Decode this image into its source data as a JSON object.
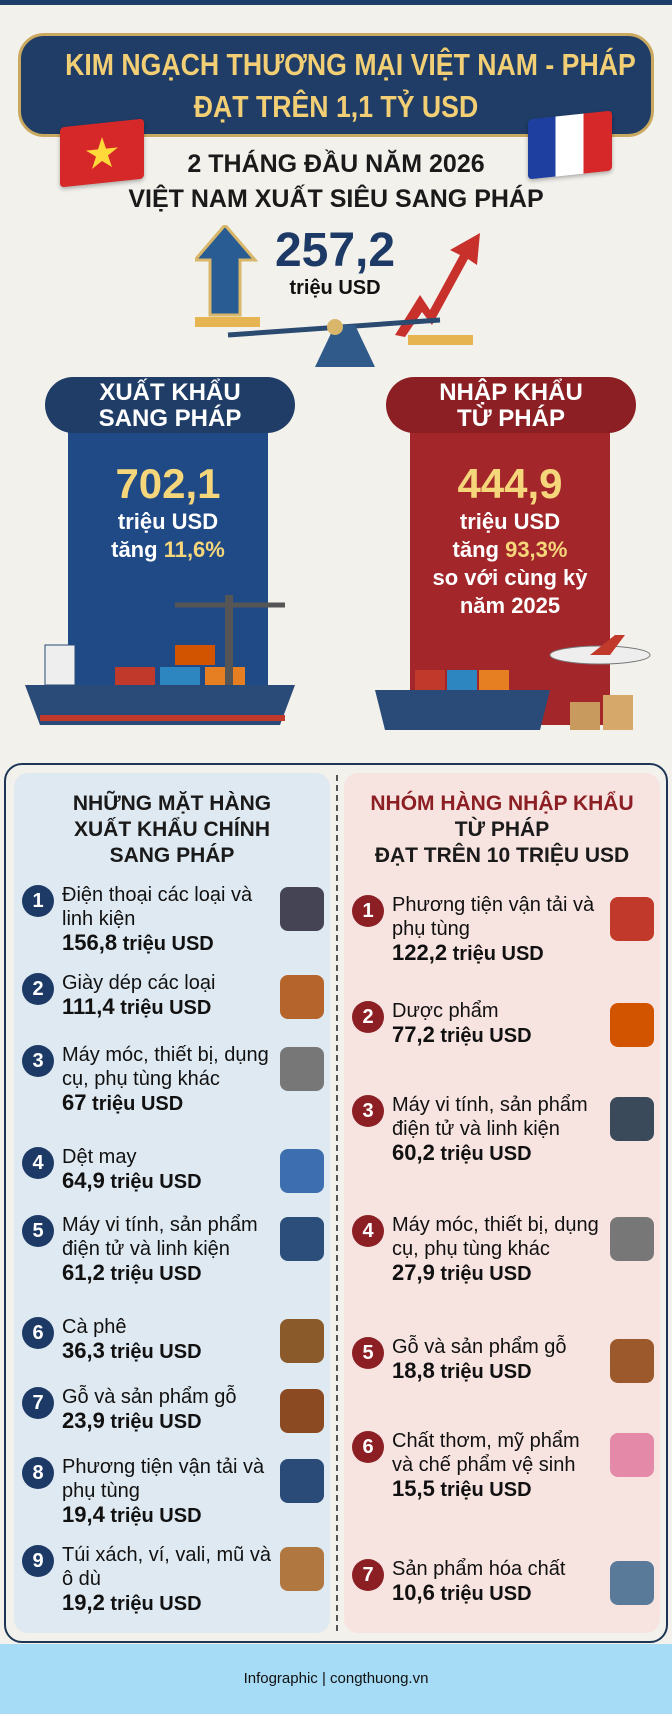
{
  "header": {
    "title_line1": "KIM NGẠCH THƯƠNG MẠI VIỆT NAM - PHÁP",
    "title_line2": "ĐẠT TRÊN 1,1 TỶ USD"
  },
  "summary": {
    "period": "2 THÁNG ĐẦU NĂM 2026",
    "headline": "VIỆT NAM XUẤT SIÊU SANG PHÁP",
    "surplus_value": "257,2",
    "surplus_unit": "triệu USD"
  },
  "export": {
    "label_line1": "XUẤT KHẨU",
    "label_line2": "SANG PHÁP",
    "value": "702,1",
    "unit": "triệu USD",
    "growth_prefix": "tăng ",
    "growth": "11,6%",
    "color": "#1f4a86"
  },
  "import": {
    "label_line1": "NHẬP KHẨU",
    "label_line2": "TỪ PHÁP",
    "value": "444,9",
    "unit": "triệu USD",
    "growth_prefix": "tăng ",
    "growth": "93,3%",
    "compare_line1": "so với cùng kỳ",
    "compare_line2": "năm 2025",
    "color": "#a3262a"
  },
  "export_list": {
    "title_line1": "NHỮNG MẶT HÀNG",
    "title_line2": "XUẤT KHẨU CHÍNH",
    "title_line3": "SANG PHÁP",
    "items": [
      {
        "n": "1",
        "name": "Điện thoại các loại và linh kiện",
        "value": "156,8",
        "unit": " triệu USD",
        "icon": "smartphone-icon"
      },
      {
        "n": "2",
        "name": "Giày dép các loại",
        "value": "111,4",
        "unit": " triệu USD",
        "icon": "shoe-icon"
      },
      {
        "n": "3",
        "name": "Máy móc, thiết bị, dụng cụ, phụ tùng khác",
        "value": "67",
        "unit": " triệu USD",
        "icon": "gear-icon"
      },
      {
        "n": "4",
        "name": "Dệt may",
        "value": "64,9",
        "unit": " triệu USD",
        "icon": "tshirt-icon"
      },
      {
        "n": "5",
        "name": "Máy vi tính, sản phẩm điện tử và linh kiện",
        "value": "61,2",
        "unit": " triệu USD",
        "icon": "chip-icon"
      },
      {
        "n": "6",
        "name": "Cà phê",
        "value": "36,3",
        "unit": " triệu USD",
        "icon": "coffee-icon"
      },
      {
        "n": "7",
        "name": "Gỗ và sản phẩm gỗ",
        "value": "23,9",
        "unit": " triệu USD",
        "icon": "chair-icon"
      },
      {
        "n": "8",
        "name": "Phương tiện vận tải và phụ tùng",
        "value": "19,4",
        "unit": " triệu USD",
        "icon": "ship-icon"
      },
      {
        "n": "9",
        "name": "Túi xách, ví, vali, mũ và ô dù",
        "value": "19,2",
        "unit": " triệu USD",
        "icon": "backpack-icon"
      }
    ]
  },
  "import_list": {
    "title_line1": "NHÓM HÀNG NHẬP KHẨU",
    "title_line2": "TỪ PHÁP",
    "title_line3": "ĐẠT TRÊN 10 TRIỆU USD",
    "items": [
      {
        "n": "1",
        "name": "Phương tiện vận tải và phụ tùng",
        "value": "122,2",
        "unit": " triệu USD",
        "icon": "airplane-car-icon"
      },
      {
        "n": "2",
        "name": "Dược phẩm",
        "value": "77,2",
        "unit": " triệu USD",
        "icon": "medicine-icon"
      },
      {
        "n": "3",
        "name": "Máy vi tính, sản phẩm điện tử và linh kiện",
        "value": "60,2",
        "unit": " triệu USD",
        "icon": "laptop-icon"
      },
      {
        "n": "4",
        "name": "Máy móc, thiết bị, dụng cụ, phụ tùng khác",
        "value": "27,9",
        "unit": " triệu USD",
        "icon": "gear-icon"
      },
      {
        "n": "5",
        "name": "Gỗ và sản phẩm gỗ",
        "value": "18,8",
        "unit": " triệu USD",
        "icon": "wood-table-icon"
      },
      {
        "n": "6",
        "name": "Chất thơm, mỹ phẩm và chế phẩm vệ sinh",
        "value": "15,5",
        "unit": " triệu USD",
        "icon": "perfume-icon"
      },
      {
        "n": "7",
        "name": "Sản phẩm hóa chất",
        "value": "10,6",
        "unit": " triệu USD",
        "icon": "test-tubes-icon"
      }
    ]
  },
  "footer": {
    "text": "Infographic | congthuong.vn"
  }
}
